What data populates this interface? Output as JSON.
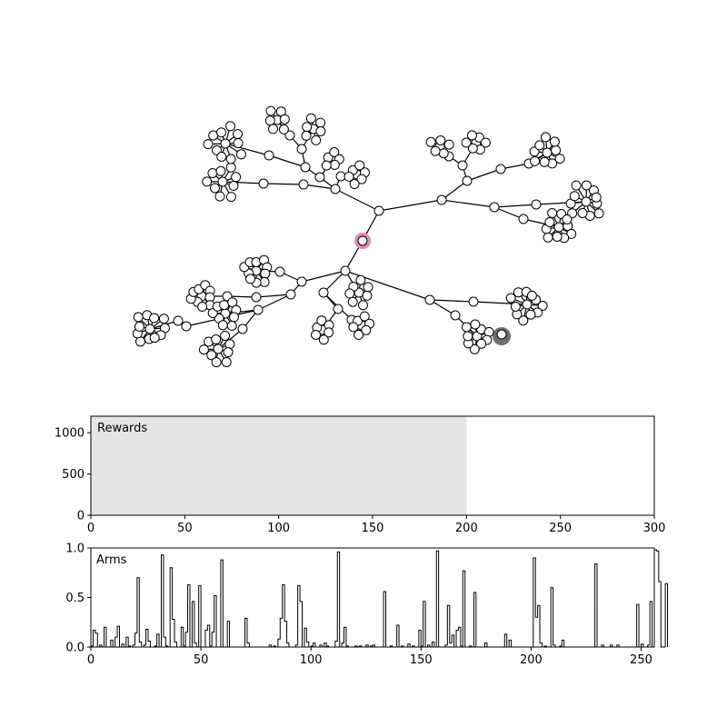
{
  "colors": {
    "node_fill": "#ffffff",
    "node_stroke": "#000000",
    "edge": "#000000",
    "highlight_pink": "#e08bb8",
    "highlight_gray": "#6e6e6e",
    "shaded_region": "#e5e5e5",
    "axis": "#000000"
  },
  "chart_data": [
    {
      "type": "tree-graph",
      "description_visible": "radial tree of search nodes",
      "highlighted_nodes": [
        "current (pink ring)",
        "best (gray)"
      ]
    },
    {
      "type": "area",
      "label": "Rewards",
      "xlim": [
        0,
        300
      ],
      "ylim": [
        0,
        1200
      ],
      "xticks": [
        "0",
        "50",
        "100",
        "150",
        "200",
        "250",
        "300"
      ],
      "yticks": [
        "0",
        "500",
        "1000"
      ],
      "shaded_span": [
        0,
        200
      ]
    },
    {
      "type": "step",
      "label": "Arms",
      "xlim": [
        0,
        256
      ],
      "ylim": [
        0,
        1.0
      ],
      "xticks": [
        "0",
        "50",
        "100",
        "150",
        "200",
        "250"
      ],
      "yticks": [
        "0.0",
        "0.5",
        "1.0"
      ],
      "values": [
        0.01,
        0.17,
        0.14,
        0.0,
        0.02,
        0.0,
        0.2,
        0.0,
        0.0,
        0.07,
        0.0,
        0.1,
        0.21,
        0.0,
        0.03,
        0.0,
        0.1,
        0.01,
        0.0,
        0.02,
        0.14,
        0.7,
        0.05,
        0.0,
        0.02,
        0.18,
        0.06,
        0.0,
        0.0,
        0.01,
        0.13,
        0.0,
        0.93,
        0.1,
        0.01,
        0.0,
        0.8,
        0.28,
        0.05,
        0.0,
        0.0,
        0.2,
        0.01,
        0.15,
        0.63,
        0.0,
        0.46,
        0.04,
        0.0,
        0.62,
        0.0,
        0.0,
        0.17,
        0.22,
        0.01,
        0.15,
        0.52,
        0.0,
        0.0,
        0.88,
        0.0,
        0.0,
        0.26,
        0.0,
        0.0,
        0.0,
        0.0,
        0.0,
        0.0,
        0.0,
        0.29,
        0.04,
        0.0,
        0.0,
        0.0,
        0.0,
        0.0,
        0.0,
        0.0,
        0.0,
        0.0,
        0.02,
        0.0,
        0.01,
        0.0,
        0.08,
        0.29,
        0.63,
        0.26,
        0.04,
        0.0,
        0.0,
        0.0,
        0.02,
        0.62,
        0.46,
        0.0,
        0.19,
        0.05,
        0.0,
        0.01,
        0.04,
        0.0,
        0.0,
        0.02,
        0.0,
        0.04,
        0.01,
        0.0,
        0.0,
        0.0,
        0.06,
        0.96,
        0.0,
        0.04,
        0.2,
        0.01,
        0.0,
        0.0,
        0.0,
        0.01,
        0.0,
        0.01,
        0.0,
        0.0,
        0.02,
        0.0,
        0.01,
        0.02,
        0.0,
        0.0,
        0.0,
        0.0,
        0.56,
        0.0,
        0.0,
        0.01,
        0.0,
        0.0,
        0.22,
        0.0,
        0.01,
        0.0,
        0.0,
        0.03,
        0.0,
        0.01,
        0.0,
        0.0,
        0.17,
        0.01,
        0.46,
        0.0,
        0.02,
        0.0,
        0.05,
        0.0,
        0.97,
        0.0,
        0.0,
        0.0,
        0.02,
        0.42,
        0.04,
        0.12,
        0.0,
        0.17,
        0.2,
        0.01,
        0.77,
        0.0,
        0.0,
        0.01,
        0.0,
        0.55,
        0.0,
        0.0,
        0.0,
        0.0,
        0.04,
        0.0,
        0.0,
        0.0,
        0.0,
        0.0,
        0.0,
        0.0,
        0.0,
        0.13,
        0.0,
        0.07,
        0.0,
        0.0,
        0.0,
        0.0,
        0.0,
        0.0,
        0.0,
        0.0,
        0.0,
        0.0,
        0.9,
        0.3,
        0.42,
        0.04,
        0.0,
        0.01,
        0.0,
        0.0,
        0.6,
        0.02,
        0.0,
        0.0,
        0.01,
        0.07,
        0.0,
        0.0,
        0.0,
        0.0,
        0.0,
        0.0,
        0.0,
        0.0,
        0.0,
        0.0,
        0.0,
        0.0,
        0.0,
        0.0,
        0.84,
        0.0,
        0.0,
        0.02,
        0.0,
        0.0,
        0.0,
        0.02,
        0.0,
        0.0,
        0.02,
        0.0,
        0.0,
        0.0,
        0.0,
        0.0,
        0.0,
        0.0,
        0.0,
        0.43,
        0.0,
        0.03,
        0.0,
        0.0,
        0.02,
        0.46,
        0.0,
        0.98,
        0.97,
        0.66,
        0.0,
        0.0,
        0.64
      ]
    }
  ]
}
